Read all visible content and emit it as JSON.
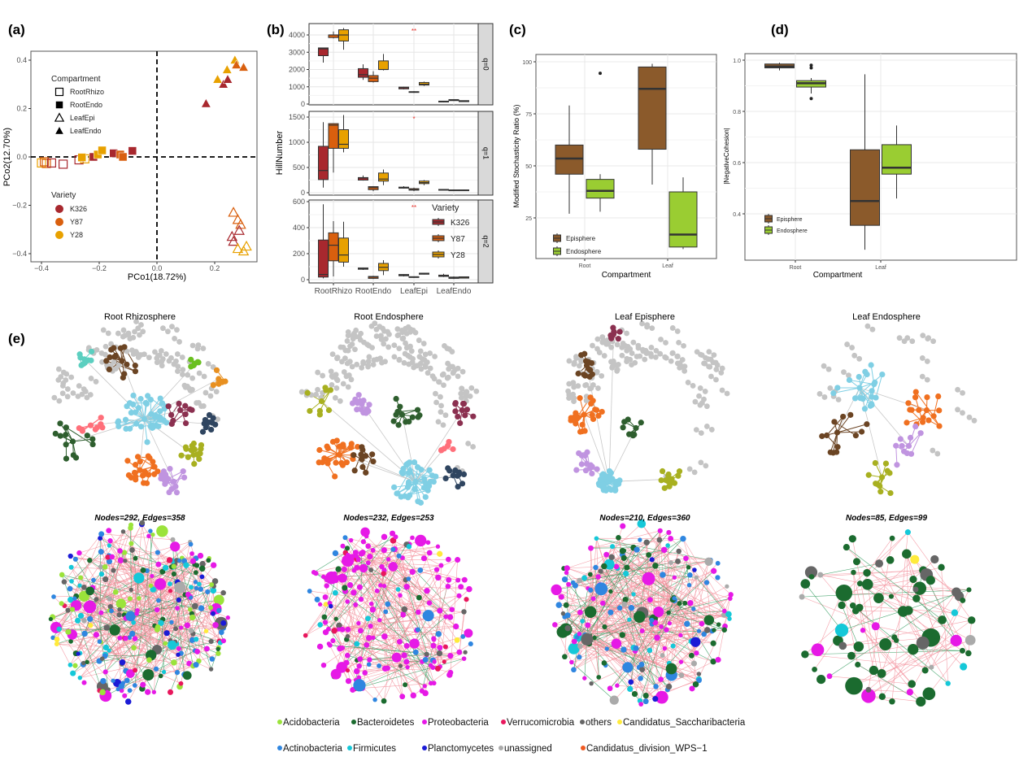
{
  "panel_labels": {
    "a": "(a)",
    "b": "(b)",
    "c": "(c)",
    "d": "(d)",
    "e": "(e)"
  },
  "colors": {
    "K326": "#a8282e",
    "Y87": "#d95f0e",
    "Y28": "#e8a100",
    "Episphere": "#8b5a2b",
    "Endosphere": "#9acd32",
    "edge_positive": "#f3909c",
    "edge_negative": "#2f9a5c"
  },
  "chart_data": [
    {
      "id": "a",
      "type": "scatter",
      "xlabel": "PCo1(18.72%)",
      "ylabel": "PCo2(12.70%)",
      "xlim": [
        -0.42,
        0.34
      ],
      "ylim": [
        -0.41,
        0.42
      ],
      "xticks": [
        -0.4,
        -0.2,
        0.0,
        0.2
      ],
      "yticks": [
        -0.4,
        -0.2,
        0.0,
        0.2,
        0.4
      ],
      "xtick_labels": [
        "−0.4",
        "−0.2",
        "0.0",
        "0.2"
      ],
      "ytick_labels": [
        "−0.4",
        "−0.2",
        "0.0",
        "0.2",
        "0.4"
      ],
      "reference_lines": {
        "x": 0,
        "y": 0,
        "style": "dashed"
      },
      "legend_shape_title": "Compartment",
      "legend_shapes": [
        {
          "label": "RootRhizo",
          "shape": "open-square"
        },
        {
          "label": "RootEndo",
          "shape": "filled-square"
        },
        {
          "label": "LeafEpi",
          "shape": "open-triangle"
        },
        {
          "label": "LeafEndo",
          "shape": "filled-triangle"
        }
      ],
      "legend_color_title": "Variety",
      "legend_colors": [
        "K326",
        "Y87",
        "Y28"
      ],
      "points": [
        {
          "x": -0.4,
          "y": -0.025,
          "c": "RootRhizo",
          "v": "Y28"
        },
        {
          "x": -0.39,
          "y": -0.02,
          "c": "RootRhizo",
          "v": "Y87"
        },
        {
          "x": -0.383,
          "y": -0.027,
          "c": "RootRhizo",
          "v": "Y87"
        },
        {
          "x": -0.365,
          "y": -0.025,
          "c": "RootRhizo",
          "v": "K326"
        },
        {
          "x": -0.325,
          "y": -0.03,
          "c": "RootRhizo",
          "v": "K326"
        },
        {
          "x": -0.27,
          "y": -0.012,
          "c": "RootRhizo",
          "v": "K326"
        },
        {
          "x": -0.25,
          "y": -0.008,
          "c": "RootRhizo",
          "v": "Y28"
        },
        {
          "x": -0.26,
          "y": -0.002,
          "c": "RootEndo",
          "v": "Y28"
        },
        {
          "x": -0.22,
          "y": 0.0,
          "c": "RootEndo",
          "v": "K326"
        },
        {
          "x": -0.205,
          "y": 0.01,
          "c": "RootEndo",
          "v": "Y28"
        },
        {
          "x": -0.19,
          "y": 0.027,
          "c": "RootEndo",
          "v": "Y28"
        },
        {
          "x": -0.15,
          "y": 0.015,
          "c": "RootEndo",
          "v": "K326"
        },
        {
          "x": -0.127,
          "y": 0.01,
          "c": "RootEndo",
          "v": "Y87"
        },
        {
          "x": -0.118,
          "y": 0.0,
          "c": "RootEndo",
          "v": "Y87"
        },
        {
          "x": -0.085,
          "y": 0.025,
          "c": "RootEndo",
          "v": "K326"
        },
        {
          "x": 0.17,
          "y": 0.22,
          "c": "LeafEndo",
          "v": "K326"
        },
        {
          "x": 0.21,
          "y": 0.32,
          "c": "LeafEndo",
          "v": "Y28"
        },
        {
          "x": 0.23,
          "y": 0.3,
          "c": "LeafEndo",
          "v": "K326"
        },
        {
          "x": 0.245,
          "y": 0.32,
          "c": "LeafEndo",
          "v": "K326"
        },
        {
          "x": 0.243,
          "y": 0.36,
          "c": "LeafEndo",
          "v": "Y28"
        },
        {
          "x": 0.27,
          "y": 0.4,
          "c": "LeafEndo",
          "v": "Y28"
        },
        {
          "x": 0.275,
          "y": 0.38,
          "c": "LeafEndo",
          "v": "Y87"
        },
        {
          "x": 0.3,
          "y": 0.37,
          "c": "LeafEndo",
          "v": "Y87"
        },
        {
          "x": 0.265,
          "y": -0.23,
          "c": "LeafEpi",
          "v": "Y87"
        },
        {
          "x": 0.28,
          "y": -0.26,
          "c": "LeafEpi",
          "v": "Y87"
        },
        {
          "x": 0.29,
          "y": -0.28,
          "c": "LeafEpi",
          "v": "Y87"
        },
        {
          "x": 0.285,
          "y": -0.305,
          "c": "LeafEpi",
          "v": "K326"
        },
        {
          "x": 0.26,
          "y": -0.33,
          "c": "LeafEpi",
          "v": "K326"
        },
        {
          "x": 0.265,
          "y": -0.35,
          "c": "LeafEpi",
          "v": "K326"
        },
        {
          "x": 0.28,
          "y": -0.38,
          "c": "LeafEpi",
          "v": "Y28"
        },
        {
          "x": 0.31,
          "y": -0.37,
          "c": "LeafEpi",
          "v": "Y28"
        },
        {
          "x": 0.3,
          "y": -0.39,
          "c": "LeafEpi",
          "v": "Y28"
        }
      ]
    },
    {
      "id": "b",
      "type": "box",
      "ylabel": "HillNumber",
      "categories": [
        "RootRhizo",
        "RootEndo",
        "LeafEpi",
        "LeafEndo"
      ],
      "legend_title": "Variety",
      "series_names": [
        "K326",
        "Y87",
        "Y28"
      ],
      "stat_order": [
        "min",
        "q1",
        "median",
        "q3",
        "max"
      ],
      "facets": [
        {
          "strip": "q=0",
          "ylim": [
            -100,
            4500
          ],
          "yticks": [
            0,
            1000,
            2000,
            3000,
            4000
          ],
          "annotation": "**",
          "annotation_category": "LeafEpi",
          "boxes": [
            [
              [
                2400,
                2800,
                3200,
                3250,
                3250
              ],
              [
                3800,
                3850,
                4000,
                4000,
                4200
              ],
              [
                3150,
                3650,
                4000,
                4300,
                4400
              ]
            ],
            [
              [
                1400,
                1550,
                1700,
                2050,
                2300
              ],
              [
                1250,
                1300,
                1500,
                1650,
                1900
              ],
              [
                1950,
                2000,
                2000,
                2500,
                2900
              ]
            ],
            [
              [
                850,
                880,
                950,
                980,
                1000
              ],
              [
                650,
                680,
                700,
                720,
                750
              ],
              [
                1050,
                1100,
                1150,
                1250,
                1300
              ]
            ],
            [
              [
                100,
                120,
                150,
                170,
                190
              ],
              [
                180,
                200,
                230,
                260,
                280
              ],
              [
                120,
                140,
                170,
                200,
                210
              ]
            ]
          ]
        },
        {
          "strip": "q=1",
          "ylim": [
            -30,
            1600
          ],
          "yticks": [
            0,
            500,
            1000,
            1500
          ],
          "annotation": "*",
          "annotation_category": "LeafEpi",
          "boxes": [
            [
              [
                100,
                260,
                440,
                920,
                1400
              ],
              [
                400,
                880,
                1340,
                1370,
                1380
              ],
              [
                800,
                880,
                960,
                1250,
                1540
              ]
            ],
            [
              [
                240,
                250,
                290,
                300,
                340
              ],
              [
                30,
                60,
                100,
                120,
                130
              ],
              [
                150,
                230,
                270,
                390,
                460
              ]
            ],
            [
              [
                80,
                90,
                100,
                110,
                130
              ],
              [
                30,
                50,
                60,
                80,
                100
              ],
              [
                150,
                180,
                200,
                230,
                250
              ]
            ],
            [
              [
                50,
                55,
                60,
                65,
                70
              ],
              [
                40,
                45,
                50,
                55,
                60
              ],
              [
                40,
                45,
                50,
                55,
                60
              ]
            ]
          ]
        },
        {
          "strip": "q=2",
          "ylim": [
            -10,
            600
          ],
          "yticks": [
            0,
            200,
            400,
            600
          ],
          "annotation": "**",
          "annotation_category": "LeafEpi",
          "boxes": [
            [
              [
                10,
                20,
                40,
                305,
                580
              ],
              [
                25,
                145,
                265,
                360,
                450
              ],
              [
                100,
                135,
                190,
                320,
                445
              ]
            ],
            [
              [
                75,
                80,
                85,
                90,
                92
              ],
              [
                5,
                10,
                20,
                25,
                30
              ],
              [
                35,
                70,
                95,
                125,
                150
              ]
            ],
            [
              [
                25,
                30,
                35,
                40,
                42
              ],
              [
                15,
                18,
                20,
                23,
                25
              ],
              [
                40,
                42,
                45,
                50,
                52
              ]
            ],
            [
              [
                20,
                25,
                30,
                35,
                45
              ],
              [
                5,
                10,
                15,
                20,
                25
              ],
              [
                10,
                12,
                18,
                22,
                25
              ]
            ]
          ]
        }
      ]
    },
    {
      "id": "c",
      "type": "box",
      "xlabel": "Compartment",
      "ylabel": "Modified Stochasticity Ratio (%)",
      "categories": [
        "Root",
        "Leaf"
      ],
      "series_names": [
        "Episphere",
        "Endosphere"
      ],
      "ylim": [
        8,
        102
      ],
      "yticks": [
        25,
        50,
        75,
        100
      ],
      "stat_order": [
        "min",
        "q1",
        "median",
        "q3",
        "max"
      ],
      "boxes": [
        [
          [
            27,
            46,
            53.5,
            60,
            79
          ],
          [
            28,
            34.5,
            38,
            43.5,
            46
          ]
        ],
        [
          [
            41,
            58,
            87,
            97.5,
            99
          ],
          [
            10,
            11,
            17,
            37.5,
            44.5
          ]
        ]
      ],
      "outliers": [
        {
          "category": "Root",
          "series": "Endosphere",
          "values": [
            94.5
          ]
        }
      ],
      "legend_position": "bottom-left"
    },
    {
      "id": "d",
      "type": "box",
      "xlabel": "Compartment",
      "ylabel": "|NegativeCohesion|",
      "categories": [
        "Root",
        "Leaf"
      ],
      "series_names": [
        "Episphere",
        "Endosphere"
      ],
      "ylim": [
        0.23,
        1.02
      ],
      "yticks": [
        0.4,
        0.6,
        0.8,
        1.0
      ],
      "ytick_labels": [
        "0.4",
        "0.6",
        "0.8",
        "1.0"
      ],
      "stat_order": [
        "min",
        "q1",
        "median",
        "q3",
        "max"
      ],
      "boxes": [
        [
          [
            0.96,
            0.97,
            0.975,
            0.985,
            0.99
          ],
          [
            0.87,
            0.895,
            0.91,
            0.92,
            0.93
          ]
        ],
        [
          [
            0.26,
            0.355,
            0.45,
            0.65,
            0.945
          ],
          [
            0.46,
            0.555,
            0.58,
            0.67,
            0.745
          ]
        ]
      ],
      "outliers": [
        {
          "category": "Root",
          "series": "Endosphere",
          "values": [
            0.97,
            0.98,
            0.85
          ]
        }
      ],
      "legend_position": "bottom-left"
    }
  ],
  "networks": [
    {
      "title": "Root Rhizosphere",
      "stats": "Nodes=292, Edges=358",
      "nodes": 292,
      "edges": 358
    },
    {
      "title": "Root Endosphere",
      "stats": "Nodes=232, Edges=253",
      "nodes": 232,
      "edges": 253
    },
    {
      "title": "Leaf Episphere",
      "stats": "Nodes=210, Edges=360",
      "nodes": 210,
      "edges": 360
    },
    {
      "title": "Leaf Endosphere",
      "stats": "Nodes=85, Edges=99",
      "nodes": 85,
      "edges": 99
    }
  ],
  "phylum_legend": [
    [
      {
        "label": "Acidobacteria",
        "color": "#9be33b"
      },
      {
        "label": "Bacteroidetes",
        "color": "#1b6b2f"
      },
      {
        "label": "Proteobacteria",
        "color": "#e619e6"
      },
      {
        "label": "Verrucomicrobia",
        "color": "#e8175d"
      },
      {
        "label": "others",
        "color": "#666666"
      },
      {
        "label": "Candidatus_Saccharibacteria",
        "color": "#ffeb3b"
      }
    ],
    [
      {
        "label": "Actinobacteria",
        "color": "#2f86e0"
      },
      {
        "label": "Firmicutes",
        "color": "#15c8d8"
      },
      {
        "label": "Planctomycetes",
        "color": "#1b1bd6"
      },
      {
        "label": "unassigned",
        "color": "#aaaaaa"
      },
      {
        "label": "Candidatus_division_WPS−1",
        "color": "#f05a22"
      }
    ]
  ]
}
